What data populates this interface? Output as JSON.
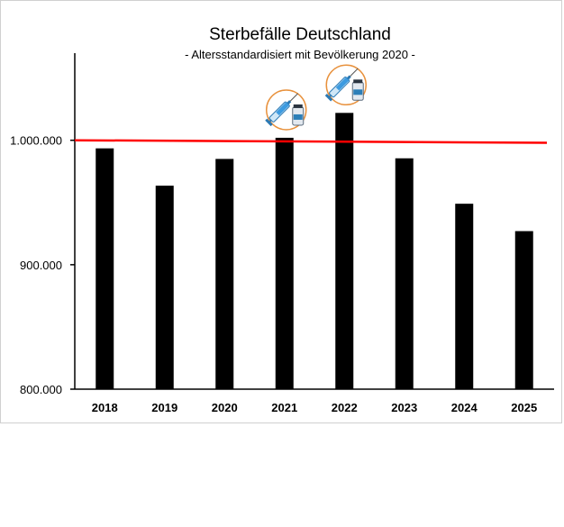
{
  "chart_data": {
    "type": "bar",
    "title": "Sterbefälle Deutschland",
    "subtitle": "- Altersstandardisiert mit Bevölkerung 2020 -",
    "categories": [
      "2018",
      "2019",
      "2020",
      "2021",
      "2022",
      "2023",
      "2024",
      "2025"
    ],
    "values": [
      993500,
      963500,
      985000,
      1002000,
      1022000,
      985500,
      949000,
      927000
    ],
    "ylim": [
      800000,
      1070000
    ],
    "yticks": [
      800000,
      900000,
      1000000
    ],
    "ytick_labels": [
      "800.000",
      "900.000",
      "1.000.000"
    ],
    "reference_line": {
      "start": 1000000,
      "end": 998000,
      "color": "#ff0000"
    },
    "bar_color": "#000000",
    "grid": false,
    "annotations": [
      {
        "category": "2021",
        "icon": "syringe-vaccine-icon"
      },
      {
        "category": "2022",
        "icon": "syringe-vaccine-icon"
      }
    ]
  }
}
